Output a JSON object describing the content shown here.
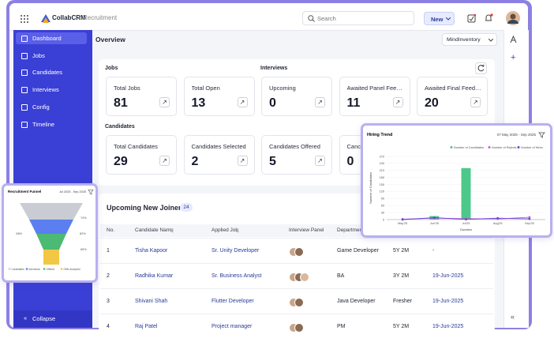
{
  "topbar": {
    "brand": "CollabCRM",
    "product": "Recruitment",
    "search_placeholder": "Search",
    "new_button": "New"
  },
  "sidebar": {
    "items": [
      "Dashboard",
      "Jobs",
      "Candidates",
      "Interviews",
      "Config",
      "Timeline"
    ],
    "collapse": "Collapse"
  },
  "header": {
    "title": "Overview",
    "org_select": "MindInventory"
  },
  "jobs": {
    "label": "Jobs",
    "cards": [
      {
        "label": "Total Jobs",
        "value": 81
      },
      {
        "label": "Total Open",
        "value": 13
      }
    ]
  },
  "interviews": {
    "label": "Interviews",
    "cards": [
      {
        "label": "Upcoming",
        "value": 0
      },
      {
        "label": "Awaited Panel Feedback",
        "value": 11
      },
      {
        "label": "Awaited Final Feedback",
        "value": 20
      }
    ]
  },
  "candidates": {
    "label": "Candidates",
    "cards": [
      {
        "label": "Total Candidates",
        "value": 29
      },
      {
        "label": "Candidates Selected",
        "value": 2
      },
      {
        "label": "Candidates Offered",
        "value": 5
      },
      {
        "label": "Canc",
        "value": 0
      }
    ]
  },
  "joiners": {
    "title": "Upcoming New Joiners",
    "count": 24,
    "columns": [
      "No.",
      "Candidate Name",
      "Applied Job",
      "Interview Panel",
      "Department"
    ],
    "rows": [
      {
        "no": 1,
        "name": "Tisha Kapoor",
        "job": "Sr. Unity Developer",
        "department": "Game Developer",
        "experience": "5Y 2M",
        "date": "-"
      },
      {
        "no": 2,
        "name": "Radhika Kumar",
        "job": "Sr. Business Analyst",
        "department": "BA",
        "experience": "3Y 2M",
        "date": "19-Jun-2025"
      },
      {
        "no": 3,
        "name": "Shivani Shah",
        "job": "Flutter Developer",
        "department": "Java Developer",
        "experience": "Fresher",
        "date": "19-Jun-2025"
      },
      {
        "no": 4,
        "name": "Raj Patel",
        "job": "Project manager",
        "department": "PM",
        "experience": "5Y 2M",
        "date": "19-Jun-2025"
      }
    ]
  },
  "hiring_trend": {
    "type": "bar",
    "title": "Hiring Trend",
    "date_range": "07 May 2025 - Sep 2025",
    "y_label": "Number of Candidates",
    "x_label": "Duration",
    "categories": [
      "May'25",
      "Jun'25",
      "Jul'25",
      "Aug'25",
      "Sep'25"
    ],
    "ylim": [
      0,
      270
    ],
    "yticks": [
      0,
      30,
      60,
      90,
      120,
      150,
      180,
      210,
      240,
      270
    ],
    "series": [
      {
        "name": "Number of Candidates",
        "color": "#4cc98a",
        "kind": "bar",
        "values": [
          0,
          15,
          220,
          0,
          0
        ]
      },
      {
        "name": "Number of Rejects",
        "color": "#c35fd6",
        "kind": "line",
        "values": [
          2,
          6,
          4,
          3,
          10
        ]
      },
      {
        "name": "Number of Hires",
        "color": "#6b43d8",
        "kind": "line",
        "values": [
          0,
          8,
          1,
          6,
          3
        ]
      }
    ]
  },
  "funnel": {
    "title": "Recruitment Funnel",
    "date_range": "Jul 2025 - Sep 2025",
    "labels": [
      "74%",
      "58%",
      "82%",
      "65%"
    ],
    "legend": [
      {
        "name": "Candidates",
        "color": "#c9ccd3"
      },
      {
        "name": "Interviews",
        "color": "#5b7ff0"
      },
      {
        "name": "Offered",
        "color": "#4cba74"
      },
      {
        "name": "Offer Accepted",
        "color": "#f2c744"
      }
    ]
  }
}
